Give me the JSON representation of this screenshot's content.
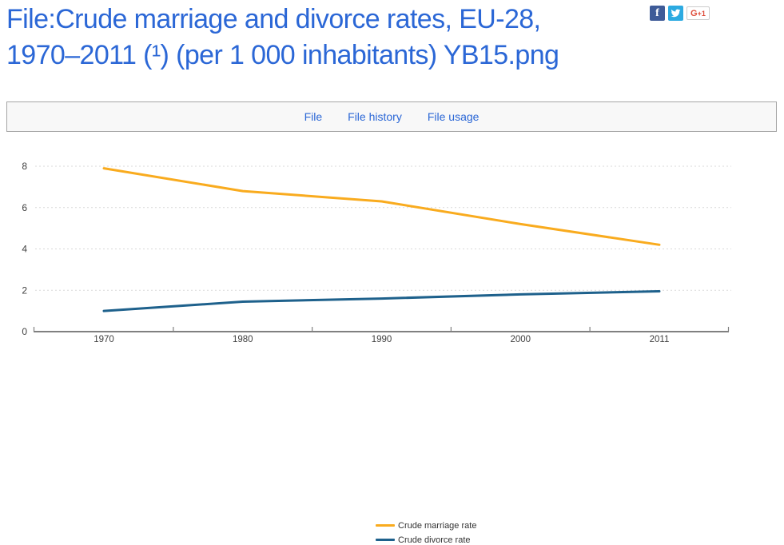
{
  "header": {
    "title_line1": "File:Crude marriage and divorce rates, EU-28,",
    "title_line2": "1970–2011 (¹) (per 1 000 inhabitants) YB15.png"
  },
  "social": {
    "facebook_label": "f",
    "twitter_icon": "twitter-bird",
    "gplus_label_g": "G",
    "gplus_label_plus1": "+1"
  },
  "tabs": {
    "items": [
      {
        "label": "File"
      },
      {
        "label": "File history"
      },
      {
        "label": "File usage"
      }
    ]
  },
  "chart_data": {
    "type": "line",
    "title": "",
    "xlabel": "",
    "ylabel": "",
    "categories": [
      "1970",
      "1980",
      "1990",
      "2000",
      "2011"
    ],
    "series": [
      {
        "name": "Crude marriage rate",
        "color": "#F9AB1E",
        "values": [
          7.9,
          6.8,
          6.3,
          5.2,
          4.2
        ]
      },
      {
        "name": "Crude divorce rate",
        "color": "#1E618C",
        "values": [
          1.0,
          1.45,
          1.6,
          1.8,
          1.95
        ]
      }
    ],
    "ylim": [
      0,
      8
    ],
    "yticks": [
      0,
      2,
      4,
      6,
      8
    ],
    "grid": "horizontal-dashed",
    "legend_position": "bottom-center"
  },
  "colors": {
    "link_blue": "#2b67d6",
    "facebook_blue": "#3e5b98",
    "twitter_blue": "#2caae1",
    "gplus_red": "#dd4b39",
    "axis_gray": "#808080",
    "grid_gray": "#d9d9d9",
    "tick_label_gray": "#404040",
    "tabbar_bg": "#f8f8f8",
    "tabbar_border": "#a5a5a5"
  }
}
